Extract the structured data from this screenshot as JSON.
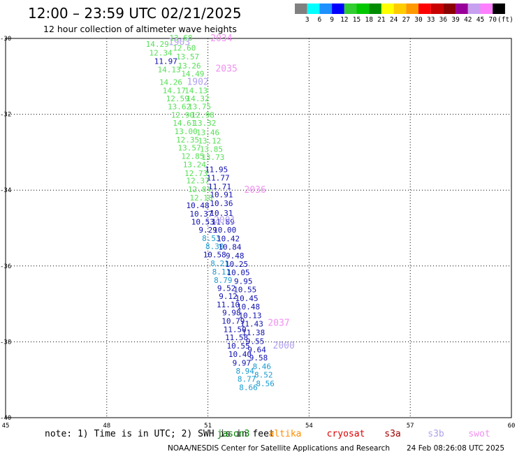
{
  "header": {
    "title": "12:00 – 23:59 UTC 02/21/2025",
    "subtitle": "12 hour collection of altimeter wave heights"
  },
  "colorbar": {
    "unit": "(ft)",
    "labels": [
      "3",
      "6",
      "9",
      "12",
      "15",
      "18",
      "21",
      "24",
      "27",
      "30",
      "33",
      "36",
      "39",
      "42",
      "45",
      "70"
    ],
    "colors": [
      "#808080",
      "#00ffff",
      "#1e90ff",
      "#0000ff",
      "#32cd32",
      "#00c800",
      "#008c00",
      "#ffff00",
      "#ffcc00",
      "#ff9900",
      "#ff0000",
      "#c80000",
      "#8b0000",
      "#990099",
      "#c8a0f0",
      "#ff80ff",
      "#000000"
    ]
  },
  "chart_data": {
    "type": "scatter",
    "xlim": [
      45,
      60
    ],
    "ylim": [
      -40,
      -30
    ],
    "x_ticks": [
      "45",
      "48",
      "51",
      "54",
      "57",
      "60"
    ],
    "y_ticks": [
      "-30",
      "-32",
      "-34",
      "-36",
      "-38",
      "-40"
    ],
    "grid": "dotted",
    "note": "note:  1) Time is in UTC; 2) SWH is in feet",
    "legend": [
      {
        "name": "jason3",
        "color": "#008000"
      },
      {
        "name": "altika",
        "color": "#ff8c00"
      },
      {
        "name": "cryosat",
        "color": "#e00000"
      },
      {
        "name": "s3a",
        "color": "#a00000"
      },
      {
        "name": "s3b",
        "color": "#b0a0ee"
      },
      {
        "name": "swot",
        "color": "#f090f0"
      }
    ],
    "time_labels": [
      {
        "text": "1903",
        "x": 50.15,
        "lat": -30.1,
        "color": "#b0a0ee"
      },
      {
        "text": "2034",
        "x": 51.4,
        "lat": -30.0,
        "color": "#f090f0"
      },
      {
        "text": "2035",
        "x": 51.55,
        "lat": -30.8,
        "color": "#f090f0"
      },
      {
        "text": "1902",
        "x": 50.7,
        "lat": -31.15,
        "color": "#b0a0ee"
      },
      {
        "text": "2036",
        "x": 52.4,
        "lat": -34.0,
        "color": "#f090f0"
      },
      {
        "text": "2001",
        "x": 51.5,
        "lat": -34.8,
        "color": "#b0a0ee"
      },
      {
        "text": "2037",
        "x": 53.1,
        "lat": -37.5,
        "color": "#f090f0"
      },
      {
        "text": "2000",
        "x": 53.25,
        "lat": -38.1,
        "color": "#b0a0ee"
      }
    ],
    "points": [
      {
        "text": "13.68",
        "x": 50.2,
        "lat": -29.98,
        "color": "#55e055"
      },
      {
        "text": "14.29",
        "x": 49.5,
        "lat": -30.15,
        "color": "#55e055"
      },
      {
        "text": "12.60",
        "x": 50.3,
        "lat": -30.25,
        "color": "#55e055"
      },
      {
        "text": "12.34",
        "x": 49.6,
        "lat": -30.38,
        "color": "#55e055"
      },
      {
        "text": "13.57",
        "x": 50.4,
        "lat": -30.48,
        "color": "#55e055"
      },
      {
        "text": "11.97",
        "x": 49.75,
        "lat": -30.6,
        "color": "#1010b0"
      },
      {
        "text": "13.26",
        "x": 50.45,
        "lat": -30.72,
        "color": "#55e055"
      },
      {
        "text": "14.13",
        "x": 49.85,
        "lat": -30.82,
        "color": "#55e055"
      },
      {
        "text": "14.49",
        "x": 50.55,
        "lat": -30.93,
        "color": "#55e055"
      },
      {
        "text": "14.26",
        "x": 49.9,
        "lat": -31.15,
        "color": "#55e055"
      },
      {
        "text": "14.17",
        "x": 50.0,
        "lat": -31.37,
        "color": "#55e055"
      },
      {
        "text": "14.13",
        "x": 50.65,
        "lat": -31.37,
        "color": "#55e055"
      },
      {
        "text": "12.59",
        "x": 50.1,
        "lat": -31.58,
        "color": "#55e055"
      },
      {
        "text": "14.32",
        "x": 50.7,
        "lat": -31.58,
        "color": "#55e055"
      },
      {
        "text": "13.62",
        "x": 50.15,
        "lat": -31.8,
        "color": "#55e055"
      },
      {
        "text": "13.75",
        "x": 50.75,
        "lat": -31.8,
        "color": "#55e055"
      },
      {
        "text": "12.90",
        "x": 50.25,
        "lat": -32.02,
        "color": "#55e055"
      },
      {
        "text": "12.98",
        "x": 50.85,
        "lat": -32.02,
        "color": "#55e055"
      },
      {
        "text": "14.61",
        "x": 50.3,
        "lat": -32.23,
        "color": "#55e055"
      },
      {
        "text": "13.32",
        "x": 50.9,
        "lat": -32.23,
        "color": "#55e055"
      },
      {
        "text": "13.00",
        "x": 50.35,
        "lat": -32.45,
        "color": "#55e055"
      },
      {
        "text": "13.46",
        "x": 51.0,
        "lat": -32.48,
        "color": "#55e055"
      },
      {
        "text": "12.35",
        "x": 50.4,
        "lat": -32.67,
        "color": "#55e055"
      },
      {
        "text": "13.12",
        "x": 51.05,
        "lat": -32.7,
        "color": "#55e055"
      },
      {
        "text": "13.57",
        "x": 50.45,
        "lat": -32.88,
        "color": "#55e055"
      },
      {
        "text": "13.85",
        "x": 51.1,
        "lat": -32.92,
        "color": "#55e055"
      },
      {
        "text": "12.85",
        "x": 50.55,
        "lat": -33.1,
        "color": "#55e055"
      },
      {
        "text": "13.73",
        "x": 51.15,
        "lat": -33.13,
        "color": "#55e055"
      },
      {
        "text": "13.24",
        "x": 50.6,
        "lat": -33.32,
        "color": "#55e055"
      },
      {
        "text": "11.95",
        "x": 51.25,
        "lat": -33.45,
        "color": "#1010b0"
      },
      {
        "text": "12.73",
        "x": 50.65,
        "lat": -33.55,
        "color": "#55e055"
      },
      {
        "text": "11.77",
        "x": 51.3,
        "lat": -33.67,
        "color": "#1010b0"
      },
      {
        "text": "12.37",
        "x": 50.7,
        "lat": -33.75,
        "color": "#55e055"
      },
      {
        "text": "11.71",
        "x": 51.35,
        "lat": -33.9,
        "color": "#1010b0"
      },
      {
        "text": "12.84",
        "x": 50.75,
        "lat": -33.98,
        "color": "#55e055"
      },
      {
        "text": "10.91",
        "x": 51.4,
        "lat": -34.12,
        "color": "#1010b0"
      },
      {
        "text": "12.18",
        "x": 50.8,
        "lat": -34.2,
        "color": "#55e055"
      },
      {
        "text": "10.48",
        "x": 50.7,
        "lat": -34.4,
        "color": "#1010b0"
      },
      {
        "text": "10.36",
        "x": 51.4,
        "lat": -34.35,
        "color": "#1010b0"
      },
      {
        "text": "10.37",
        "x": 50.8,
        "lat": -34.62,
        "color": "#1010b0"
      },
      {
        "text": "10.31",
        "x": 51.4,
        "lat": -34.6,
        "color": "#1010b0"
      },
      {
        "text": "10.53",
        "x": 50.85,
        "lat": -34.83,
        "color": "#1010b0"
      },
      {
        "text": "11.89",
        "x": 51.45,
        "lat": -34.83,
        "color": "#1010b0"
      },
      {
        "text": "9.29",
        "x": 51.0,
        "lat": -35.05,
        "color": "#1010b0"
      },
      {
        "text": "10.00",
        "x": 51.5,
        "lat": -35.05,
        "color": "#1010b0"
      },
      {
        "text": "8.53",
        "x": 51.1,
        "lat": -35.27,
        "color": "#1a9ad0"
      },
      {
        "text": "10.42",
        "x": 51.6,
        "lat": -35.28,
        "color": "#1010b0"
      },
      {
        "text": "8.30",
        "x": 51.2,
        "lat": -35.48,
        "color": "#1a9ad0"
      },
      {
        "text": "10.84",
        "x": 51.65,
        "lat": -35.5,
        "color": "#1010b0"
      },
      {
        "text": "10.58",
        "x": 51.2,
        "lat": -35.7,
        "color": "#1010b0"
      },
      {
        "text": "9.48",
        "x": 51.8,
        "lat": -35.73,
        "color": "#1010b0"
      },
      {
        "text": "8.21",
        "x": 51.35,
        "lat": -35.93,
        "color": "#1a9ad0"
      },
      {
        "text": "10.25",
        "x": 51.85,
        "lat": -35.95,
        "color": "#1010b0"
      },
      {
        "text": "8.11",
        "x": 51.4,
        "lat": -36.15,
        "color": "#1a9ad0"
      },
      {
        "text": "10.05",
        "x": 51.9,
        "lat": -36.17,
        "color": "#1010b0"
      },
      {
        "text": "8.79",
        "x": 51.45,
        "lat": -36.37,
        "color": "#1a9ad0"
      },
      {
        "text": "9.95",
        "x": 52.05,
        "lat": -36.4,
        "color": "#1010b0"
      },
      {
        "text": "9.52",
        "x": 51.55,
        "lat": -36.58,
        "color": "#1010b0"
      },
      {
        "text": "10.55",
        "x": 52.1,
        "lat": -36.62,
        "color": "#1010b0"
      },
      {
        "text": "9.12",
        "x": 51.6,
        "lat": -36.8,
        "color": "#1010b0"
      },
      {
        "text": "10.45",
        "x": 52.15,
        "lat": -36.85,
        "color": "#1010b0"
      },
      {
        "text": "11.10",
        "x": 51.6,
        "lat": -37.02,
        "color": "#1010b0"
      },
      {
        "text": "10.48",
        "x": 52.2,
        "lat": -37.07,
        "color": "#1010b0"
      },
      {
        "text": "9.98",
        "x": 51.7,
        "lat": -37.23,
        "color": "#1010b0"
      },
      {
        "text": "10.13",
        "x": 52.25,
        "lat": -37.3,
        "color": "#1010b0"
      },
      {
        "text": "10.79",
        "x": 51.75,
        "lat": -37.45,
        "color": "#1010b0"
      },
      {
        "text": "11.43",
        "x": 52.3,
        "lat": -37.52,
        "color": "#1010b0"
      },
      {
        "text": "11.50",
        "x": 51.8,
        "lat": -37.67,
        "color": "#1010b0"
      },
      {
        "text": "11.38",
        "x": 52.35,
        "lat": -37.75,
        "color": "#1010b0"
      },
      {
        "text": "11.58",
        "x": 51.85,
        "lat": -37.88,
        "color": "#1010b0"
      },
      {
        "text": "9.55",
        "x": 52.4,
        "lat": -37.98,
        "color": "#1010b0"
      },
      {
        "text": "10.55",
        "x": 51.9,
        "lat": -38.1,
        "color": "#1010b0"
      },
      {
        "text": "9.64",
        "x": 52.45,
        "lat": -38.2,
        "color": "#1010b0"
      },
      {
        "text": "10.40",
        "x": 51.95,
        "lat": -38.32,
        "color": "#1010b0"
      },
      {
        "text": "9.58",
        "x": 52.5,
        "lat": -38.42,
        "color": "#1010b0"
      },
      {
        "text": "9.97",
        "x": 52.0,
        "lat": -38.55,
        "color": "#1010b0"
      },
      {
        "text": "8.46",
        "x": 52.6,
        "lat": -38.65,
        "color": "#1a9ad0"
      },
      {
        "text": "8.94",
        "x": 52.1,
        "lat": -38.77,
        "color": "#1a9ad0"
      },
      {
        "text": "8.52",
        "x": 52.65,
        "lat": -38.87,
        "color": "#1a9ad0"
      },
      {
        "text": "8.77",
        "x": 52.15,
        "lat": -38.98,
        "color": "#1a9ad0"
      },
      {
        "text": "8.56",
        "x": 52.7,
        "lat": -39.1,
        "color": "#1a9ad0"
      },
      {
        "text": "8.66",
        "x": 52.2,
        "lat": -39.2,
        "color": "#1a9ad0"
      }
    ]
  },
  "footer": {
    "credit": "NOAA/NESDIS Center for Satellite Applications and Research",
    "timestamp": "24 Feb 08:26:08 UTC 2025"
  }
}
